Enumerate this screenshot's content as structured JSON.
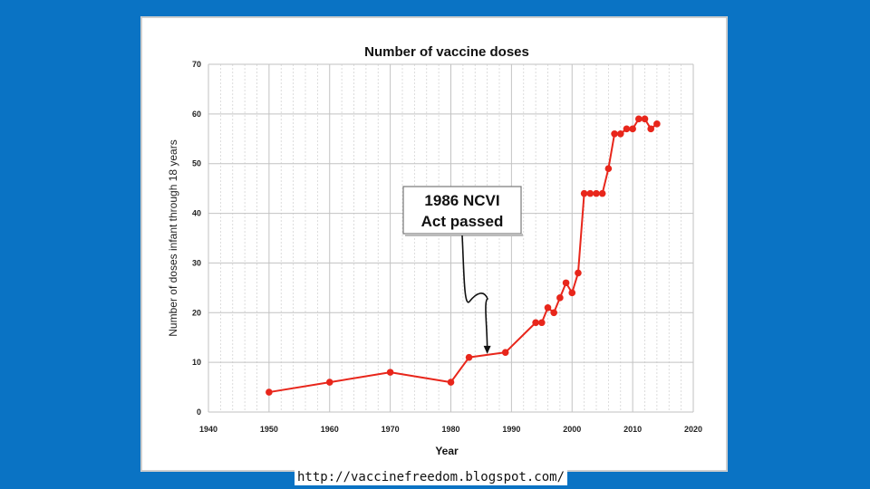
{
  "chart_data": {
    "type": "line",
    "title": "Number of vaccine doses",
    "xlabel": "Year",
    "ylabel": "Number of doses infant through 18 years",
    "xlim": [
      1940,
      2020
    ],
    "ylim": [
      0,
      70
    ],
    "xticks": [
      1940,
      1950,
      1960,
      1970,
      1980,
      1990,
      2000,
      2010,
      2020
    ],
    "yticks": [
      0,
      10,
      20,
      30,
      40,
      50,
      60,
      70
    ],
    "grid": true,
    "series": [
      {
        "name": "Number of vaccine doses",
        "color": "#e8261b",
        "points": [
          [
            1950,
            4
          ],
          [
            1960,
            6
          ],
          [
            1970,
            8
          ],
          [
            1980,
            6
          ],
          [
            1983,
            11
          ],
          [
            1989,
            12
          ],
          [
            1994,
            18
          ],
          [
            1995,
            18
          ],
          [
            1996,
            21
          ],
          [
            1997,
            20
          ],
          [
            1998,
            23
          ],
          [
            1999,
            26
          ],
          [
            2000,
            24
          ],
          [
            2001,
            28
          ],
          [
            2002,
            44
          ],
          [
            2003,
            44
          ],
          [
            2004,
            44
          ],
          [
            2005,
            44
          ],
          [
            2006,
            49
          ],
          [
            2007,
            56
          ],
          [
            2008,
            56
          ],
          [
            2009,
            57
          ],
          [
            2010,
            57
          ],
          [
            2011,
            59
          ],
          [
            2012,
            59
          ],
          [
            2013,
            57
          ],
          [
            2014,
            58
          ]
        ]
      }
    ],
    "annotation": {
      "lines": [
        "1986 NCVI",
        "Act passed"
      ],
      "arrow_target_year": 1986,
      "arrow_target_value": 11.5
    }
  },
  "caption": "http://vaccinefreedom.blogspot.com/"
}
